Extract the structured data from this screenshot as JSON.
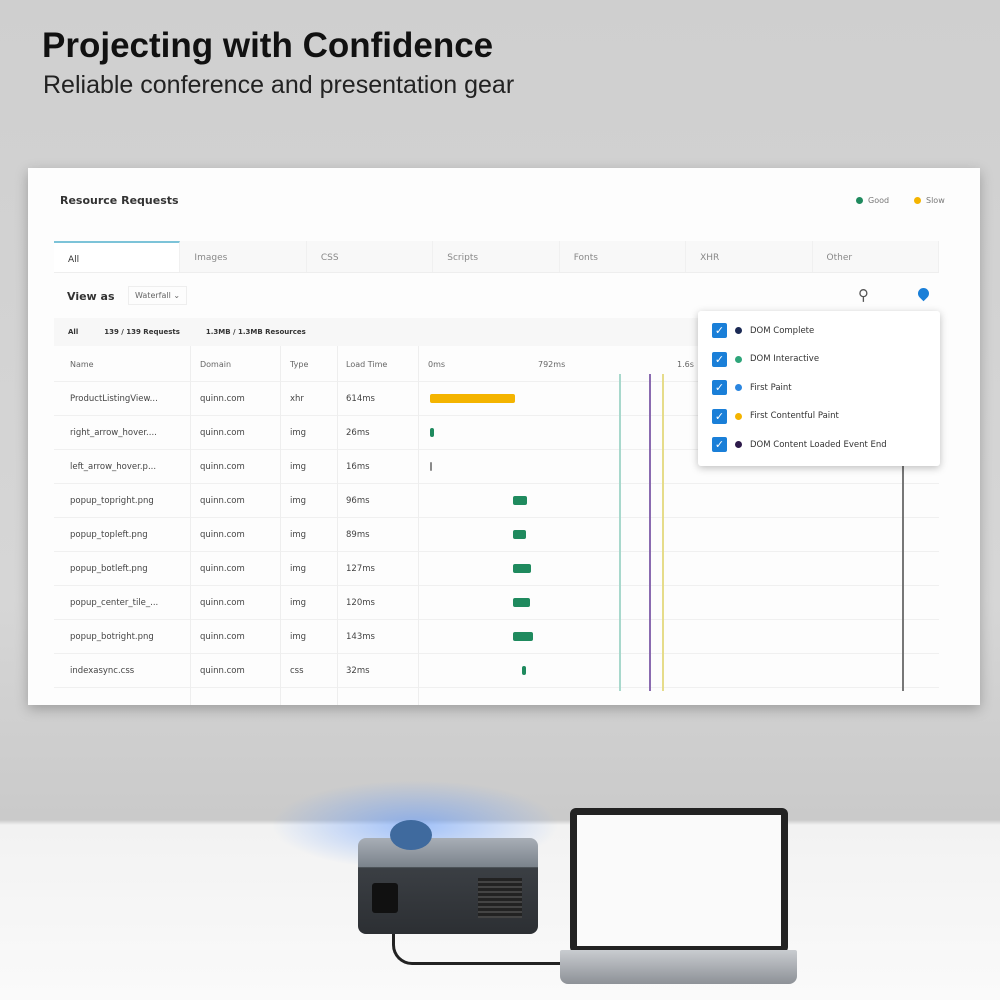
{
  "headline": "Projecting with Confidence",
  "subheadline": "Reliable conference and presentation gear",
  "panel": {
    "title": "Resource Requests",
    "legend": [
      {
        "label": "Good",
        "color": "#1f8a5e"
      },
      {
        "label": "Slow",
        "color": "#f4b400"
      }
    ],
    "tabs": [
      "All",
      "Images",
      "CSS",
      "Scripts",
      "Fonts",
      "XHR",
      "Other"
    ],
    "view_as_label": "View as",
    "view_as_value": "Waterfall",
    "summary": {
      "filter": "All",
      "requests": "139 / 139 Requests",
      "resources": "1.3MB / 1.3MB Resources"
    },
    "columns": [
      "Name",
      "Domain",
      "Type",
      "Load Time"
    ],
    "timeline_ticks": [
      "0ms",
      "792ms",
      "1.6s"
    ],
    "rows": [
      {
        "name": "ProductListingView...",
        "domain": "quinn.com",
        "type": "xhr",
        "load": "614ms",
        "start": 0,
        "ms": 614,
        "status": "slow"
      },
      {
        "name": "right_arrow_hover....",
        "domain": "quinn.com",
        "type": "img",
        "load": "26ms",
        "start": 0,
        "ms": 26,
        "status": "good"
      },
      {
        "name": "left_arrow_hover.p...",
        "domain": "quinn.com",
        "type": "img",
        "load": "16ms",
        "start": 0,
        "ms": 16,
        "status": "neutral"
      },
      {
        "name": "popup_topright.png",
        "domain": "quinn.com",
        "type": "img",
        "load": "96ms",
        "start": 600,
        "ms": 96,
        "status": "good"
      },
      {
        "name": "popup_topleft.png",
        "domain": "quinn.com",
        "type": "img",
        "load": "89ms",
        "start": 600,
        "ms": 89,
        "status": "good"
      },
      {
        "name": "popup_botleft.png",
        "domain": "quinn.com",
        "type": "img",
        "load": "127ms",
        "start": 600,
        "ms": 127,
        "status": "good"
      },
      {
        "name": "popup_center_tile_...",
        "domain": "quinn.com",
        "type": "img",
        "load": "120ms",
        "start": 600,
        "ms": 120,
        "status": "good"
      },
      {
        "name": "popup_botright.png",
        "domain": "quinn.com",
        "type": "img",
        "load": "143ms",
        "start": 600,
        "ms": 143,
        "status": "good"
      },
      {
        "name": "indexasync.css",
        "domain": "quinn.com",
        "type": "css",
        "load": "32ms",
        "start": 660,
        "ms": 32,
        "status": "good"
      }
    ],
    "markers_popup": [
      {
        "label": "DOM Complete",
        "color": "#1b2a55",
        "checked": true
      },
      {
        "label": "DOM Interactive",
        "color": "#2ea57a",
        "checked": true
      },
      {
        "label": "First Paint",
        "color": "#2b86e0",
        "checked": true
      },
      {
        "label": "First Contentful Paint",
        "color": "#f4b400",
        "checked": true
      },
      {
        "label": "DOM Content Loaded Event End",
        "color": "#2d1a4a",
        "checked": true
      }
    ]
  }
}
